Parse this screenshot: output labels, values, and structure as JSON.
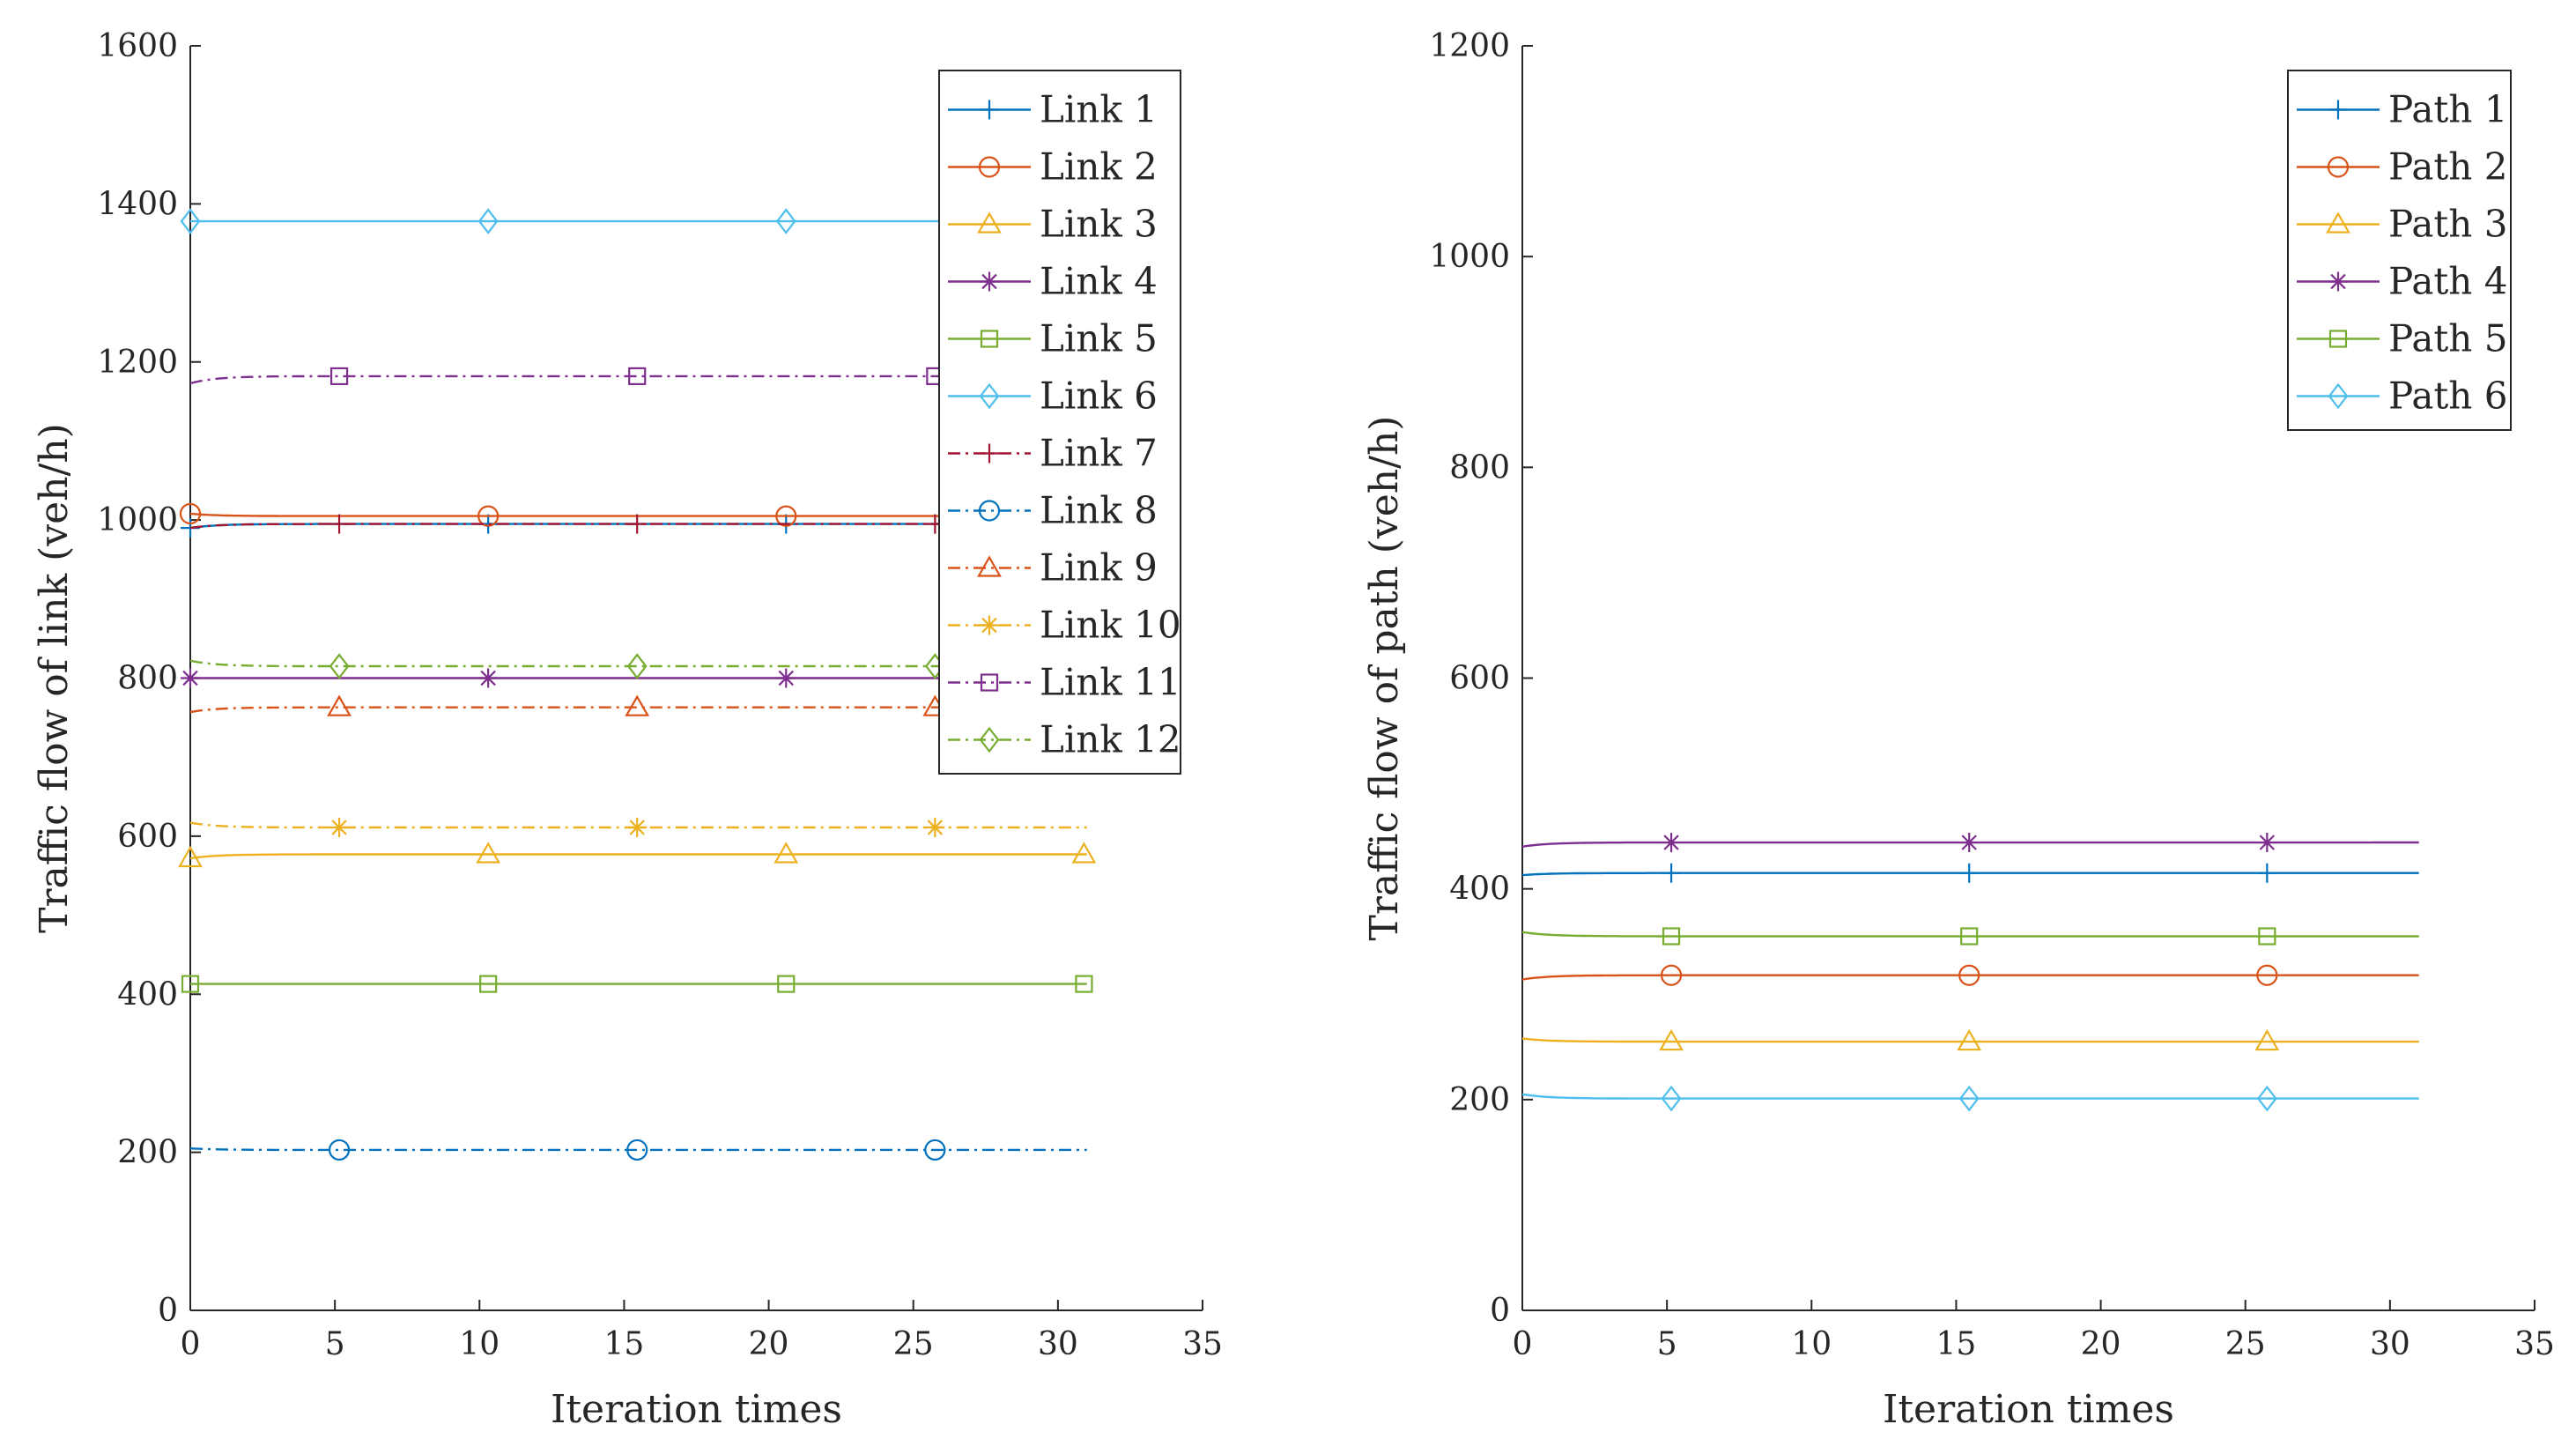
{
  "chart_data": [
    {
      "type": "line",
      "xlabel": "Iteration times",
      "ylabel": "Traffic flow of link (veh/h)",
      "xlim": [
        0,
        35
      ],
      "ylim": [
        0,
        1600
      ],
      "xticks": [
        0,
        5,
        10,
        15,
        20,
        25,
        30,
        35
      ],
      "xtick_labels": [
        "0",
        "5",
        "10",
        "15",
        "20",
        "25",
        "30",
        "35"
      ],
      "yticks": [
        0,
        200,
        400,
        600,
        800,
        1000,
        1200,
        1400,
        1600
      ],
      "ytick_labels": [
        "0",
        "200",
        "400",
        "600",
        "800",
        "1000",
        "1200",
        "1400",
        "1600"
      ],
      "grid": false,
      "legend_position": "top-right",
      "series": [
        {
          "name": "Link 1",
          "start": 990,
          "final": 995,
          "color": "#0072BD",
          "marker": "plus",
          "dash": "solid",
          "markers_at": [
            0,
            10.3,
            20.6,
            30.9
          ]
        },
        {
          "name": "Link 2",
          "start": 1008,
          "final": 1005,
          "color": "#D95319",
          "marker": "circle",
          "dash": "solid",
          "markers_at": [
            0,
            10.3,
            20.6,
            30.9
          ]
        },
        {
          "name": "Link 3",
          "start": 572,
          "final": 577,
          "color": "#EDB120",
          "marker": "triangle",
          "dash": "solid",
          "markers_at": [
            0,
            10.3,
            20.6,
            30.9
          ]
        },
        {
          "name": "Link 4",
          "start": 800,
          "final": 800,
          "color": "#7E2F8E",
          "marker": "star",
          "dash": "solid",
          "markers_at": [
            0,
            10.3,
            20.6,
            30.9
          ]
        },
        {
          "name": "Link 5",
          "start": 413,
          "final": 413,
          "color": "#77AC30",
          "marker": "square",
          "dash": "solid",
          "markers_at": [
            0,
            10.3,
            20.6,
            30.9
          ]
        },
        {
          "name": "Link 6",
          "start": 1378,
          "final": 1378,
          "color": "#4DBEEE",
          "marker": "diamond",
          "dash": "solid",
          "markers_at": [
            0,
            10.3,
            20.6,
            30.9
          ]
        },
        {
          "name": "Link 7",
          "start": 990,
          "final": 995,
          "color": "#A2142F",
          "marker": "plus",
          "dash": "dashdot",
          "markers_at": [
            5.15,
            15.45,
            25.75
          ]
        },
        {
          "name": "Link 8",
          "start": 205,
          "final": 203,
          "color": "#0072BD",
          "marker": "circle",
          "dash": "dashdot",
          "markers_at": [
            5.15,
            15.45,
            25.75
          ]
        },
        {
          "name": "Link 9",
          "start": 757,
          "final": 763,
          "color": "#D95319",
          "marker": "triangle",
          "dash": "dashdot",
          "markers_at": [
            5.15,
            15.45,
            25.75
          ]
        },
        {
          "name": "Link 10",
          "start": 617,
          "final": 611,
          "color": "#EDB120",
          "marker": "star",
          "dash": "dashdot",
          "markers_at": [
            5.15,
            15.45,
            25.75
          ]
        },
        {
          "name": "Link 11",
          "start": 1173,
          "final": 1182,
          "color": "#7E2F8E",
          "marker": "square",
          "dash": "dashdot",
          "markers_at": [
            5.15,
            15.45,
            25.75
          ]
        },
        {
          "name": "Link 12",
          "start": 822,
          "final": 815,
          "color": "#77AC30",
          "marker": "diamond",
          "dash": "dashdot",
          "markers_at": [
            5.15,
            15.45,
            25.75
          ]
        }
      ],
      "x_end": 31
    },
    {
      "type": "line",
      "xlabel": "Iteration times",
      "ylabel": "Traffic flow of path (veh/h)",
      "xlim": [
        0,
        35
      ],
      "ylim": [
        0,
        1200
      ],
      "xticks": [
        0,
        5,
        10,
        15,
        20,
        25,
        30,
        35
      ],
      "xtick_labels": [
        "0",
        "5",
        "10",
        "15",
        "20",
        "25",
        "30",
        "35"
      ],
      "yticks": [
        0,
        200,
        400,
        600,
        800,
        1000,
        1200
      ],
      "ytick_labels": [
        "0",
        "200",
        "400",
        "600",
        "800",
        "1000",
        "1200"
      ],
      "grid": false,
      "legend_position": "top-right",
      "series": [
        {
          "name": "Path 1",
          "start": 413,
          "final": 415,
          "color": "#0072BD",
          "marker": "plus",
          "dash": "solid",
          "markers_at": [
            5.15,
            15.45,
            25.75
          ]
        },
        {
          "name": "Path 2",
          "start": 314,
          "final": 318,
          "color": "#D95319",
          "marker": "circle",
          "dash": "solid",
          "markers_at": [
            5.15,
            15.45,
            25.75
          ]
        },
        {
          "name": "Path 3",
          "start": 258,
          "final": 255,
          "color": "#EDB120",
          "marker": "triangle",
          "dash": "solid",
          "markers_at": [
            5.15,
            15.45,
            25.75
          ]
        },
        {
          "name": "Path 4",
          "start": 440,
          "final": 444,
          "color": "#7E2F8E",
          "marker": "star",
          "dash": "solid",
          "markers_at": [
            5.15,
            15.45,
            25.75
          ]
        },
        {
          "name": "Path 5",
          "start": 359,
          "final": 355,
          "color": "#77AC30",
          "marker": "square",
          "dash": "solid",
          "markers_at": [
            5.15,
            15.45,
            25.75
          ]
        },
        {
          "name": "Path 6",
          "start": 205,
          "final": 201,
          "color": "#4DBEEE",
          "marker": "diamond",
          "dash": "solid",
          "markers_at": [
            5.15,
            15.45,
            25.75
          ]
        }
      ],
      "x_end": 31
    }
  ]
}
